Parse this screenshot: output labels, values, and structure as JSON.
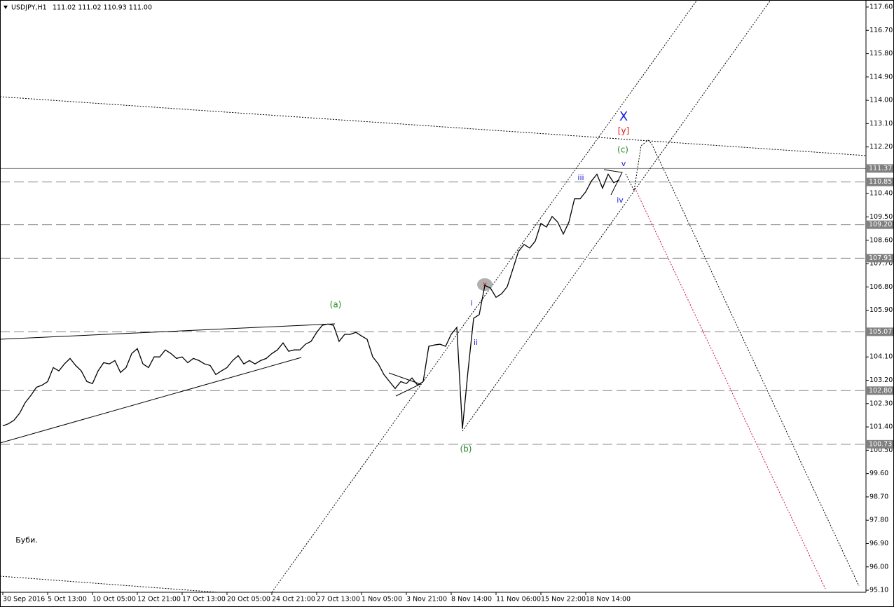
{
  "chart_data": {
    "type": "line",
    "title": "USDJPY,H1",
    "subtitle": "111.02 111.02 110.93 111.00",
    "categories": [
      "30 Sep 2016",
      null,
      null,
      null,
      null,
      null,
      null,
      null,
      "5 Oct 13:00",
      null,
      null,
      null,
      null,
      null,
      null,
      null,
      "10 Oct 05:00",
      null,
      null,
      null,
      null,
      null,
      null,
      null,
      "12 Oct 21:00",
      null,
      null,
      null,
      null,
      null,
      null,
      null,
      "17 Oct 13:00",
      null,
      null,
      null,
      null,
      null,
      null,
      null,
      "20 Oct 05:00",
      null,
      null,
      null,
      null,
      null,
      null,
      null,
      "24 Oct 21:00",
      null,
      null,
      null,
      null,
      null,
      null,
      null,
      "27 Oct 13:00",
      null,
      null,
      null,
      null,
      null,
      null,
      null,
      "1 Nov 05:00",
      null,
      null,
      null,
      null,
      null,
      null,
      null,
      "3 Nov 21:00",
      null,
      null,
      null,
      null,
      null,
      null,
      null,
      "8 Nov 14:00",
      null,
      null,
      null,
      null,
      null,
      null,
      null,
      "11 Nov 06:00",
      null,
      null,
      null,
      null,
      null,
      null,
      null,
      "15 Nov 22:00",
      null,
      null,
      null,
      null,
      null,
      null,
      null,
      "18 Nov 14:00",
      null,
      null,
      null,
      null,
      null,
      null,
      null
    ],
    "series": [
      {
        "color": "#000000",
        "values": [
          101.44,
          101.52,
          101.66,
          101.93,
          102.34,
          102.61,
          102.93,
          103.01,
          103.15,
          103.69,
          103.56,
          103.83,
          104.04,
          103.77,
          103.56,
          103.15,
          103.07,
          103.56,
          103.88,
          103.83,
          103.96,
          103.5,
          103.69,
          104.23,
          104.42,
          103.83,
          103.69,
          104.1,
          104.1,
          104.37,
          104.23,
          104.04,
          104.1,
          103.88,
          104.04,
          103.96,
          103.83,
          103.77,
          103.42,
          103.56,
          103.69,
          103.96,
          104.15,
          103.83,
          103.96,
          103.83,
          103.96,
          104.04,
          104.23,
          104.37,
          104.64,
          104.32,
          104.37,
          104.37,
          104.59,
          104.7,
          105.05,
          105.32,
          105.37,
          105.32,
          104.7,
          104.97,
          104.97,
          105.05,
          104.91,
          104.78,
          104.1,
          103.83,
          103.42,
          103.15,
          102.88,
          103.15,
          103.07,
          103.29,
          103.01,
          103.15,
          104.51,
          104.56,
          104.59,
          104.51,
          104.97,
          105.24,
          101.33,
          103.56,
          105.59,
          105.73,
          106.86,
          106.76,
          106.4,
          106.54,
          106.81,
          107.49,
          108.17,
          108.44,
          108.3,
          108.57,
          109.25,
          109.11,
          109.52,
          109.3,
          108.84,
          109.3,
          110.2,
          110.2,
          110.47,
          110.88,
          111.15,
          110.61,
          111.15,
          110.82,
          110.93,
          null
        ]
      }
    ],
    "ylim": [
      95.02,
      117.87
    ],
    "yticks": [
      {
        "value": 117.6,
        "label": "117.60"
      },
      {
        "value": 116.7,
        "label": "116.70"
      },
      {
        "value": 115.8,
        "label": "115.80"
      },
      {
        "value": 114.9,
        "label": "114.90"
      },
      {
        "value": 114,
        "label": "114.00"
      },
      {
        "value": 113.1,
        "label": "113.10"
      },
      {
        "value": 112.2,
        "label": "112.20"
      },
      {
        "value": 110.4,
        "label": "110.40"
      },
      {
        "value": 109.5,
        "label": "109.50"
      },
      {
        "value": 108.6,
        "label": "108.60"
      },
      {
        "value": 107.7,
        "label": "107.70"
      },
      {
        "value": 106.8,
        "label": "106.80"
      },
      {
        "value": 105.9,
        "label": "105.90"
      },
      {
        "value": 104.1,
        "label": "104.10"
      },
      {
        "value": 103.2,
        "label": "103.20"
      },
      {
        "value": 102.3,
        "label": "102.30"
      },
      {
        "value": 101.4,
        "label": "101.40"
      },
      {
        "value": 100.5,
        "label": "100.50"
      },
      {
        "value": 99.6,
        "label": "99.60"
      },
      {
        "value": 98.7,
        "label": "98.70"
      },
      {
        "value": 97.8,
        "label": "97.80"
      },
      {
        "value": 96.9,
        "label": "96.90"
      },
      {
        "value": 96,
        "label": "96.00"
      },
      {
        "value": 95.1,
        "label": "95.10"
      }
    ],
    "levels": [
      {
        "value": 111.37,
        "label": "111.37",
        "dashed": false
      },
      {
        "value": 110.85,
        "label": "110.85",
        "dashed": true
      },
      {
        "value": 109.2,
        "label": "109.20",
        "dashed": true
      },
      {
        "value": 107.91,
        "label": "107.91",
        "dashed": true
      },
      {
        "value": 105.07,
        "label": "105.07",
        "dashed": true
      },
      {
        "value": 102.8,
        "label": "102.80",
        "dashed": true
      },
      {
        "value": 100.73,
        "label": "100.73",
        "dashed": true
      }
    ],
    "annotations": [
      {
        "text": "(a)",
        "color": "#2a8a2a"
      },
      {
        "text": "(b)",
        "color": "#2a8a2a"
      },
      {
        "text": "(c)",
        "color": "#2a8a2a"
      },
      {
        "text": "[y]",
        "color": "#e01010"
      },
      {
        "text": "X",
        "color": "#1a1ae0"
      },
      {
        "text": "i",
        "color": "#1a1ae0"
      },
      {
        "text": "ii",
        "color": "#1a1ae0"
      },
      {
        "text": "iii",
        "color": "#1a1ae0"
      },
      {
        "text": "iv",
        "color": "#1a1ae0"
      },
      {
        "text": "v",
        "color": "#1a1ae0"
      },
      {
        "text": "Буби.",
        "color": "#000000"
      }
    ]
  }
}
